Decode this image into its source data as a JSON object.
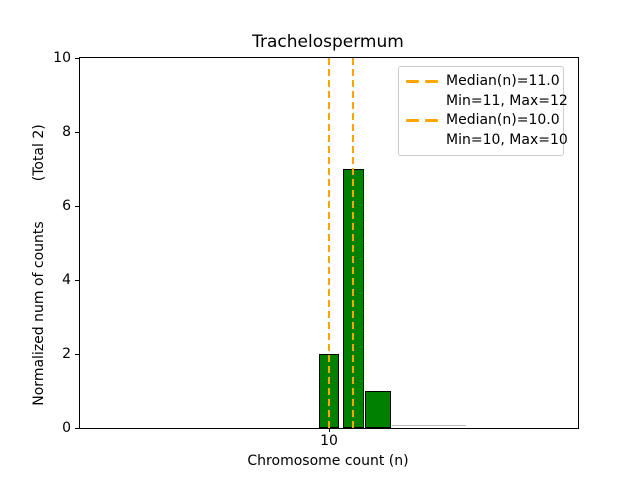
{
  "figure": {
    "title": "Trachelospermum",
    "xlabel": "Chromosome count (n)",
    "ylabel": "Normalized num of counts         (Total 2)"
  },
  "legend": {
    "position": "upper-right",
    "entries": [
      {
        "label": "Median(n)=11.0",
        "marker": "orange-dashed-line"
      },
      {
        "label": "Min=11, Max=12",
        "marker": "none"
      },
      {
        "label": "Median(n)=10.0",
        "marker": "orange-dashed-line"
      },
      {
        "label": "Min=10, Max=10",
        "marker": "none"
      }
    ]
  },
  "colors": {
    "bar_fill": "#008000",
    "bar_edge": "#000000",
    "median_line": "#FFA500",
    "legend_border": "#cccccc",
    "text": "#000000"
  },
  "chart_data": {
    "type": "bar",
    "title": "Trachelospermum",
    "xlabel": "Chromosome count (n)",
    "ylabel": "Normalized num of counts (Total 2)",
    "total_records": 2,
    "bars": [
      {
        "x": 10,
        "height": 2,
        "bin_width": 0.86
      },
      {
        "x": 11,
        "height": 7,
        "bin_width": 0.88
      },
      {
        "x": 12,
        "height": 1,
        "bin_width": 1.08
      }
    ],
    "median_lines": [
      {
        "x": 11.0,
        "label": "Median(n)=11.0",
        "min": 11,
        "max": 12
      },
      {
        "x": 10.0,
        "label": "Median(n)=10.0",
        "min": 10,
        "max": 10
      }
    ],
    "zero_height_bin_baseline": {
      "from": 12.6,
      "to": 15.6
    },
    "xlim": [
      -0.2,
      20.2
    ],
    "ylim": [
      0,
      10
    ],
    "xticks": [
      10
    ],
    "yticks": [
      0,
      2,
      4,
      6,
      8,
      10
    ],
    "grid": false,
    "legend_position": "upper right"
  }
}
